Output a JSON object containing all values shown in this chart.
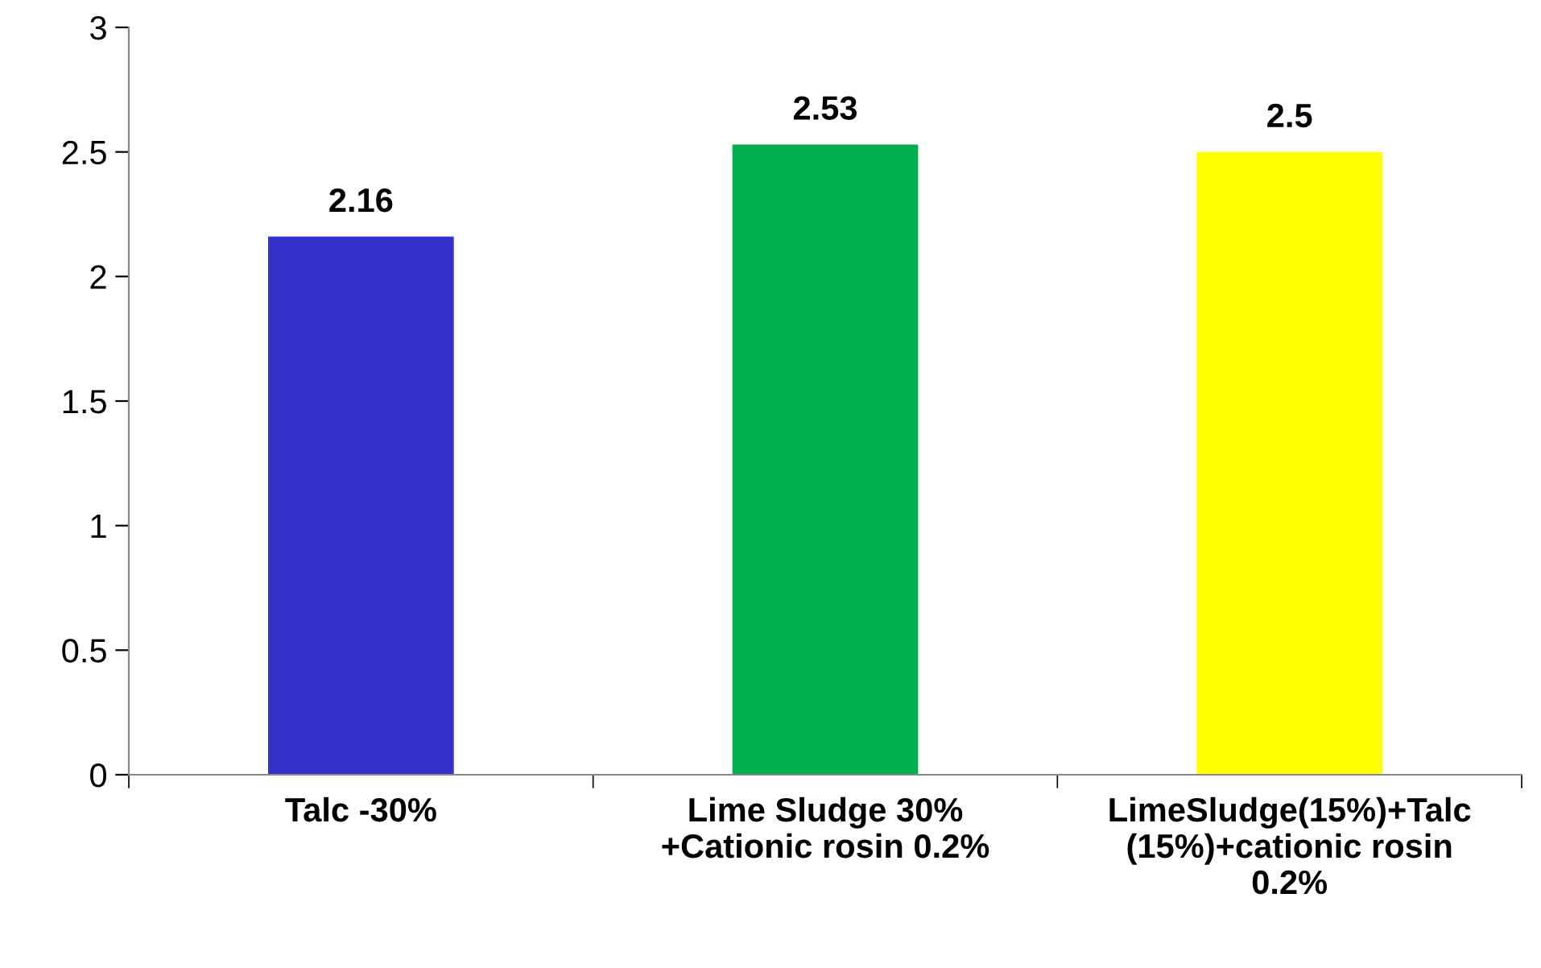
{
  "chart_data": {
    "type": "bar",
    "categories": [
      "Talc -30%",
      "Lime Sludge 30%\n+Cationic rosin 0.2%",
      "LimeSludge(15%)+Talc\n(15%)+cationic rosin\n0.2%"
    ],
    "values": [
      2.16,
      2.53,
      2.5
    ],
    "colors": [
      "#3333cc",
      "#00b050",
      "#ffff00"
    ],
    "ylim": [
      0,
      3
    ],
    "yticks": [
      0,
      0.5,
      1,
      1.5,
      2,
      2.5,
      3
    ],
    "data_labels": true,
    "grid": false,
    "legend": false
  }
}
